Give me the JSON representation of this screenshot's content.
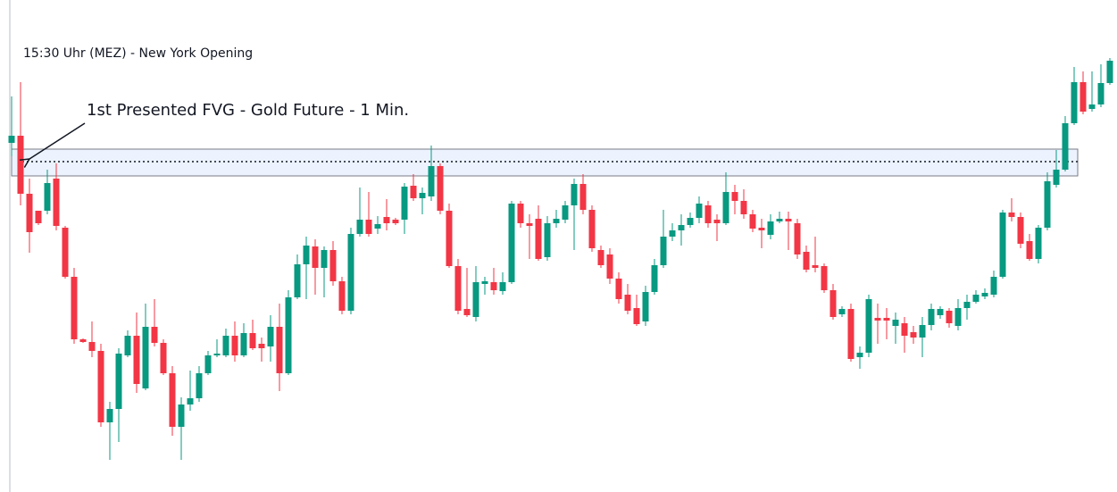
{
  "chart_data": {
    "type": "candlestick",
    "title": "15:30 Uhr (MEZ) - New York Opening",
    "annotation": "1st Presented FVG - Gold Future - 1 Min.",
    "up_color": "#089981",
    "down_color": "#f23645",
    "ylim": [
      49,
      600
    ],
    "fvg": {
      "top": 433,
      "bottom": 403,
      "level": 419
    },
    "ohlc": [
      [
        440,
        492,
        425,
        448
      ],
      [
        448,
        508,
        370,
        383
      ],
      [
        383,
        400,
        317,
        340
      ],
      [
        364,
        364,
        348,
        350
      ],
      [
        364,
        410,
        360,
        395
      ],
      [
        400,
        417,
        342,
        347
      ],
      [
        345,
        347,
        288,
        290
      ],
      [
        290,
        300,
        215,
        220
      ],
      [
        220,
        221,
        216,
        217
      ],
      [
        217,
        240,
        200,
        207
      ],
      [
        207,
        215,
        122,
        127
      ],
      [
        127,
        150,
        85,
        142
      ],
      [
        142,
        210,
        105,
        204
      ],
      [
        202,
        230,
        200,
        224
      ],
      [
        224,
        250,
        160,
        170
      ],
      [
        165,
        260,
        163,
        234
      ],
      [
        234,
        265,
        212,
        216
      ],
      [
        216,
        220,
        180,
        182
      ],
      [
        182,
        190,
        112,
        122
      ],
      [
        122,
        155,
        85,
        147
      ],
      [
        147,
        185,
        140,
        154
      ],
      [
        154,
        190,
        150,
        182
      ],
      [
        182,
        207,
        180,
        202
      ],
      [
        202,
        220,
        200,
        204
      ],
      [
        202,
        232,
        200,
        224
      ],
      [
        224,
        240,
        195,
        202
      ],
      [
        202,
        238,
        200,
        227
      ],
      [
        227,
        242,
        208,
        210
      ],
      [
        215,
        222,
        195,
        210
      ],
      [
        212,
        247,
        195,
        234
      ],
      [
        234,
        260,
        162,
        182
      ],
      [
        182,
        275,
        180,
        267
      ],
      [
        267,
        315,
        265,
        304
      ],
      [
        304,
        335,
        265,
        325
      ],
      [
        324,
        332,
        270,
        300
      ],
      [
        300,
        324,
        267,
        320
      ],
      [
        320,
        330,
        280,
        285
      ],
      [
        285,
        290,
        248,
        252
      ],
      [
        252,
        345,
        248,
        338
      ],
      [
        338,
        390,
        335,
        354
      ],
      [
        354,
        385,
        335,
        338
      ],
      [
        344,
        358,
        338,
        349
      ],
      [
        357,
        377,
        342,
        350
      ],
      [
        354,
        356,
        348,
        350
      ],
      [
        354,
        395,
        338,
        391
      ],
      [
        392,
        405,
        375,
        378
      ],
      [
        378,
        390,
        360,
        384
      ],
      [
        380,
        437,
        375,
        414
      ],
      [
        414,
        417,
        360,
        364
      ],
      [
        364,
        372,
        300,
        302
      ],
      [
        302,
        310,
        248,
        252
      ],
      [
        254,
        300,
        245,
        247
      ],
      [
        245,
        302,
        240,
        284
      ],
      [
        282,
        290,
        270,
        285
      ],
      [
        284,
        300,
        270,
        275
      ],
      [
        274,
        295,
        270,
        284
      ],
      [
        284,
        375,
        282,
        372
      ],
      [
        372,
        375,
        345,
        350
      ],
      [
        350,
        360,
        310,
        347
      ],
      [
        355,
        370,
        308,
        310
      ],
      [
        312,
        358,
        308,
        350
      ],
      [
        350,
        365,
        345,
        355
      ],
      [
        354,
        375,
        350,
        370
      ],
      [
        370,
        400,
        320,
        394
      ],
      [
        394,
        405,
        360,
        365
      ],
      [
        365,
        370,
        318,
        322
      ],
      [
        320,
        325,
        300,
        303
      ],
      [
        315,
        322,
        282,
        288
      ],
      [
        288,
        295,
        260,
        265
      ],
      [
        270,
        282,
        248,
        252
      ],
      [
        255,
        270,
        235,
        237
      ],
      [
        240,
        280,
        235,
        273
      ],
      [
        273,
        310,
        270,
        303
      ],
      [
        303,
        365,
        300,
        335
      ],
      [
        335,
        350,
        330,
        342
      ],
      [
        342,
        360,
        325,
        348
      ],
      [
        348,
        362,
        345,
        356
      ],
      [
        356,
        380,
        350,
        372
      ],
      [
        370,
        375,
        345,
        350
      ],
      [
        354,
        360,
        330,
        350
      ],
      [
        350,
        407,
        348,
        385
      ],
      [
        385,
        393,
        360,
        375
      ],
      [
        375,
        388,
        355,
        360
      ],
      [
        360,
        365,
        340,
        344
      ],
      [
        345,
        355,
        322,
        342
      ],
      [
        337,
        360,
        332,
        352
      ],
      [
        352,
        363,
        350,
        355
      ],
      [
        355,
        363,
        320,
        352
      ],
      [
        350,
        355,
        310,
        315
      ],
      [
        318,
        325,
        295,
        298
      ],
      [
        303,
        335,
        295,
        300
      ],
      [
        302,
        305,
        272,
        275
      ],
      [
        275,
        282,
        242,
        245
      ],
      [
        248,
        257,
        245,
        254
      ],
      [
        254,
        260,
        195,
        198
      ],
      [
        200,
        212,
        187,
        205
      ],
      [
        205,
        270,
        200,
        265
      ],
      [
        244,
        260,
        215,
        241
      ],
      [
        244,
        255,
        220,
        241
      ],
      [
        235,
        250,
        215,
        242
      ],
      [
        238,
        245,
        205,
        224
      ],
      [
        228,
        235,
        215,
        222
      ],
      [
        222,
        245,
        200,
        236
      ],
      [
        236,
        260,
        230,
        254
      ],
      [
        247,
        257,
        243,
        254
      ],
      [
        252,
        255,
        233,
        238
      ],
      [
        235,
        265,
        230,
        255
      ],
      [
        255,
        270,
        242,
        262
      ],
      [
        262,
        275,
        260,
        270
      ],
      [
        268,
        277,
        265,
        272
      ],
      [
        270,
        297,
        267,
        290
      ],
      [
        290,
        365,
        288,
        362
      ],
      [
        362,
        378,
        352,
        357
      ],
      [
        357,
        362,
        322,
        327
      ],
      [
        330,
        338,
        308,
        310
      ],
      [
        310,
        348,
        305,
        345
      ],
      [
        345,
        407,
        342,
        397
      ],
      [
        393,
        432,
        390,
        410
      ],
      [
        410,
        470,
        408,
        462
      ],
      [
        462,
        525,
        460,
        508
      ],
      [
        508,
        520,
        472,
        475
      ],
      [
        478,
        520,
        475,
        483
      ],
      [
        483,
        528,
        480,
        507
      ],
      [
        507,
        535,
        505,
        532
      ]
    ]
  }
}
